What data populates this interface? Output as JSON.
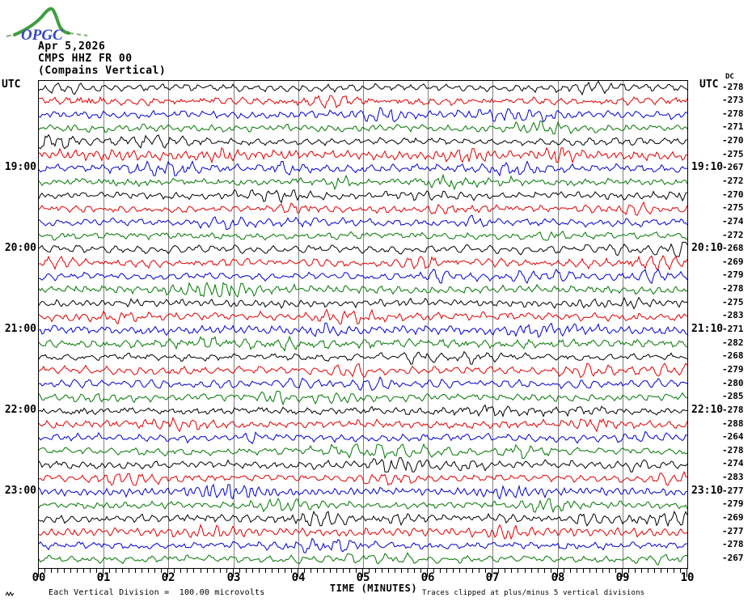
{
  "logo": {
    "text": "OPGC"
  },
  "header": {
    "date": "Apr 5,2026",
    "station": "CMPS HHZ FR 00",
    "component": "(Compains Vertical)"
  },
  "axis": {
    "left_header": "UTC",
    "right_header": "UTC",
    "dc_header": "DC",
    "x_ticks": [
      "00",
      "01",
      "02",
      "03",
      "04",
      "05",
      "06",
      "07",
      "08",
      "09",
      "10"
    ],
    "x_label": "TIME (MINUTES)"
  },
  "footer": {
    "scale_note": "Each Vertical Division =  100.00 microvolts",
    "clip_note": "Traces clipped at plus/minus 5 vertical divisions"
  },
  "chart_data": {
    "type": "line",
    "title": "Helicorder record CMPS HHZ FR 00 (Compains Vertical), Apr 5,2026",
    "x_axis": {
      "label": "TIME (MINUTES)",
      "range": [
        0,
        10
      ],
      "major_tick": 1,
      "minor_tick": 0.1
    },
    "row_duration_minutes": 10,
    "rows_per_hour": 6,
    "grid": "vertical lines at each minute",
    "legend_position": "none",
    "colors": {
      "black": "#000000",
      "red": "#dd0000",
      "blue": "#0000cc",
      "green": "#007700",
      "grid": "#808080"
    },
    "color_cycle": [
      "black",
      "red",
      "blue",
      "green"
    ],
    "rows": [
      {
        "left": "",
        "right": "",
        "dc": -278
      },
      {
        "left": "",
        "right": "",
        "dc": -273
      },
      {
        "left": "",
        "right": "",
        "dc": -278
      },
      {
        "left": "",
        "right": "",
        "dc": -271
      },
      {
        "left": "",
        "right": "",
        "dc": -270
      },
      {
        "left": "",
        "right": "",
        "dc": -275
      },
      {
        "left": "19:00",
        "right": "19:10",
        "dc": -267
      },
      {
        "left": "",
        "right": "",
        "dc": -272
      },
      {
        "left": "",
        "right": "",
        "dc": -270
      },
      {
        "left": "",
        "right": "",
        "dc": -275
      },
      {
        "left": "",
        "right": "",
        "dc": -274
      },
      {
        "left": "",
        "right": "",
        "dc": -272
      },
      {
        "left": "20:00",
        "right": "20:10",
        "dc": -268
      },
      {
        "left": "",
        "right": "",
        "dc": -269
      },
      {
        "left": "",
        "right": "",
        "dc": -279
      },
      {
        "left": "",
        "right": "",
        "dc": -278
      },
      {
        "left": "",
        "right": "",
        "dc": -275
      },
      {
        "left": "",
        "right": "",
        "dc": -283
      },
      {
        "left": "21:00",
        "right": "21:10",
        "dc": -271
      },
      {
        "left": "",
        "right": "",
        "dc": -282
      },
      {
        "left": "",
        "right": "",
        "dc": -268
      },
      {
        "left": "",
        "right": "",
        "dc": -279
      },
      {
        "left": "",
        "right": "",
        "dc": -280
      },
      {
        "left": "",
        "right": "",
        "dc": -285
      },
      {
        "left": "22:00",
        "right": "22:10",
        "dc": -278
      },
      {
        "left": "",
        "right": "",
        "dc": -288
      },
      {
        "left": "",
        "right": "",
        "dc": -264
      },
      {
        "left": "",
        "right": "",
        "dc": -278
      },
      {
        "left": "",
        "right": "",
        "dc": -274
      },
      {
        "left": "",
        "right": "",
        "dc": -283
      },
      {
        "left": "23:00",
        "right": "23:10",
        "dc": -277
      },
      {
        "left": "",
        "right": "",
        "dc": -279
      },
      {
        "left": "",
        "right": "",
        "dc": -269
      },
      {
        "left": "",
        "right": "",
        "dc": -277
      },
      {
        "left": "",
        "right": "",
        "dc": -278
      },
      {
        "left": "",
        "right": "",
        "dc": -267
      }
    ]
  }
}
